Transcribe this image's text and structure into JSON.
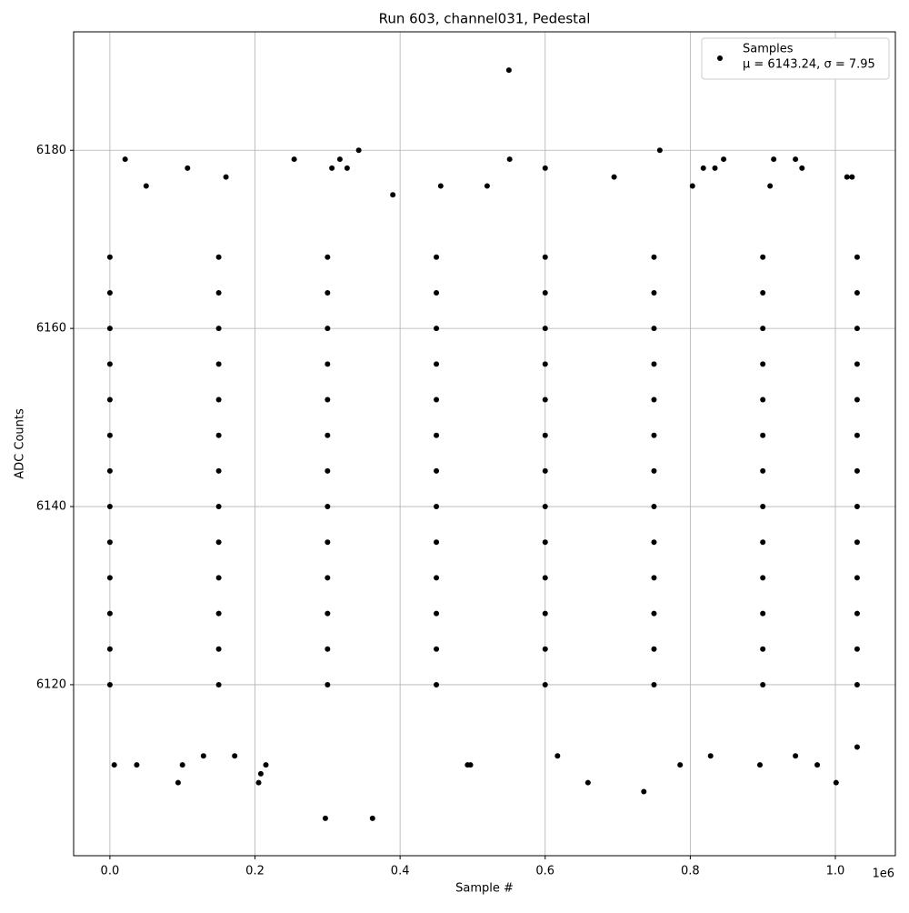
{
  "chart_data": {
    "type": "scatter",
    "title": "Run 603, channel031, Pedestal",
    "xlabel": "Sample #",
    "ylabel": "ADC Counts",
    "x_offset_label": "1e6",
    "xlim": [
      -50000,
      1082700
    ],
    "ylim": [
      6100.8,
      6193.3
    ],
    "xticks": [
      {
        "value": 0,
        "label": "0.0"
      },
      {
        "value": 200000,
        "label": "0.2"
      },
      {
        "value": 400000,
        "label": "0.4"
      },
      {
        "value": 600000,
        "label": "0.6"
      },
      {
        "value": 800000,
        "label": "0.8"
      },
      {
        "value": 1000000,
        "label": "1.0"
      }
    ],
    "yticks": [
      6120,
      6140,
      6160,
      6180
    ],
    "grid": true,
    "legend": "upper right",
    "legend_note": "μ = 6143.24, σ = 7.95",
    "series": [
      {
        "name": "Samples",
        "color": "#000000",
        "x": [
          550000,
          297000,
          362000,
          736000,
          343000,
          758000,
          21000,
          1001000,
          94000,
          659000,
          205000,
          208000,
          215000,
          6000,
          37000,
          100000,
          493000,
          497000,
          786000,
          896000,
          975000,
          317000,
          551000,
          846000,
          915000,
          945000,
          254000,
          107000,
          306000,
          327000,
          600000,
          818000,
          834000,
          954000,
          50000,
          160000,
          695000,
          1016000,
          1023000,
          390000,
          456000,
          520000,
          803000,
          910000,
          617000,
          129000,
          172000,
          828000,
          945000,
          1030000,
          0,
          150000,
          300000,
          450000,
          600000,
          750000,
          900000,
          1030000,
          0,
          150000,
          300000,
          450000,
          600000,
          750000,
          900000,
          1030000,
          0,
          150000,
          300000,
          450000,
          600000,
          750000,
          900000,
          1030000,
          0,
          150000,
          300000,
          450000,
          600000,
          750000,
          900000,
          1030000,
          0,
          150000,
          300000,
          450000,
          600000,
          750000,
          900000,
          1030000,
          0,
          150000,
          300000,
          450000,
          600000,
          750000,
          900000,
          1030000,
          0,
          150000,
          300000,
          450000,
          600000,
          750000,
          900000,
          1030000,
          0,
          150000,
          300000,
          450000,
          600000,
          750000,
          900000,
          1030000,
          0,
          150000,
          300000,
          450000,
          600000,
          750000,
          900000,
          1030000,
          0,
          150000,
          300000,
          450000,
          600000,
          750000,
          900000,
          1030000,
          0,
          150000,
          300000,
          450000,
          600000,
          750000,
          900000,
          1030000,
          0,
          150000,
          300000,
          450000,
          600000,
          750000,
          900000,
          1030000,
          0,
          150000,
          300000,
          450000,
          600000,
          750000,
          900000,
          1030000
        ],
        "y": [
          6189,
          6105,
          6105,
          6108,
          6180,
          6180,
          6179,
          6109,
          6109,
          6109,
          6109,
          6110,
          6111,
          6111,
          6111,
          6111,
          6111,
          6111,
          6111,
          6111,
          6111,
          6179,
          6179,
          6179,
          6179,
          6179,
          6179,
          6178,
          6178,
          6178,
          6178,
          6178,
          6178,
          6178,
          6176,
          6177,
          6177,
          6177,
          6177,
          6175,
          6176,
          6176,
          6176,
          6176,
          6112,
          6112,
          6112,
          6112,
          6112,
          6113,
          6120,
          6120,
          6120,
          6120,
          6120,
          6120,
          6120,
          6120,
          6124,
          6124,
          6124,
          6124,
          6124,
          6124,
          6124,
          6124,
          6128,
          6128,
          6128,
          6128,
          6128,
          6128,
          6128,
          6128,
          6132,
          6132,
          6132,
          6132,
          6132,
          6132,
          6132,
          6132,
          6136,
          6136,
          6136,
          6136,
          6136,
          6136,
          6136,
          6136,
          6140,
          6140,
          6140,
          6140,
          6140,
          6140,
          6140,
          6140,
          6144,
          6144,
          6144,
          6144,
          6144,
          6144,
          6144,
          6144,
          6148,
          6148,
          6148,
          6148,
          6148,
          6148,
          6148,
          6148,
          6152,
          6152,
          6152,
          6152,
          6152,
          6152,
          6152,
          6152,
          6156,
          6156,
          6156,
          6156,
          6156,
          6156,
          6156,
          6156,
          6160,
          6160,
          6160,
          6160,
          6160,
          6160,
          6160,
          6160,
          6164,
          6164,
          6164,
          6164,
          6164,
          6164,
          6164,
          6164,
          6168,
          6168,
          6168,
          6168,
          6168,
          6168,
          6168,
          6168
        ]
      }
    ]
  }
}
